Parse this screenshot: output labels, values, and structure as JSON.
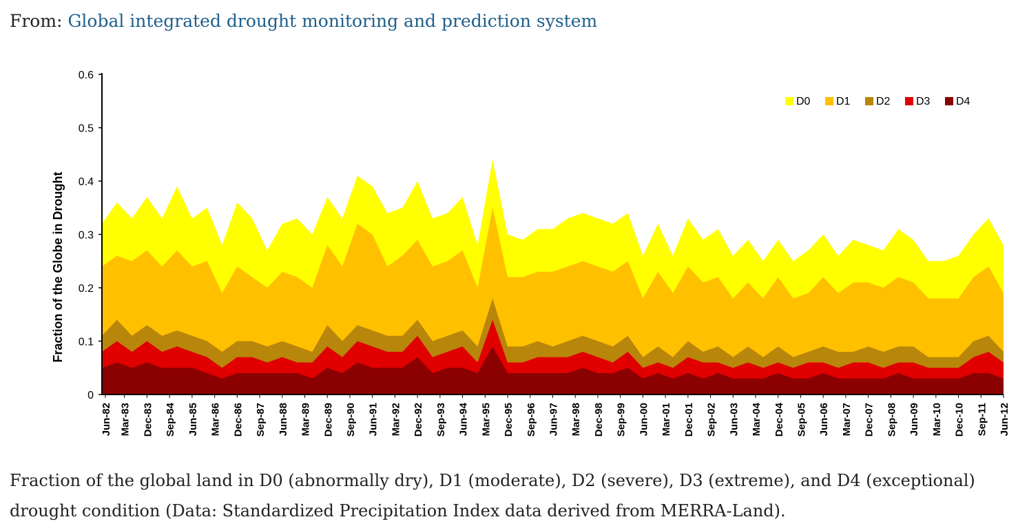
{
  "source": {
    "prefix": "From:",
    "link_text": "Global integrated drought monitoring and prediction system"
  },
  "caption": "Fraction of the global land in D0 (abnormally dry), D1 (moderate), D2 (severe), D3 (extreme), and D4 (exceptional) drought condition (Data: Standardized Precipitation Index data derived from MERRA-Land).",
  "chart_data": {
    "type": "area",
    "stacked": false,
    "title": "",
    "xlabel": "",
    "ylabel": "Fraction of the Globe in Drought",
    "ylim": [
      0,
      0.6
    ],
    "yticks": [
      "0",
      "0.1",
      "0.2",
      "0.3",
      "0.4",
      "0.5",
      "0.6"
    ],
    "xticks": [
      "Jun-82",
      "Mar-83",
      "Dec-83",
      "Sep-84",
      "Jun-85",
      "Mar-86",
      "Dec-86",
      "Sep-87",
      "Jun-88",
      "Mar-89",
      "Dec-89",
      "Sep-90",
      "Jun-91",
      "Mar-92",
      "Dec-92",
      "Sep-93",
      "Jun-94",
      "Mar-95",
      "Dec-95",
      "Sep-96",
      "Jun-97",
      "Mar-98",
      "Dec-98",
      "Sep-99",
      "Jun-00",
      "Mar-01",
      "Dec-01",
      "Sep-02",
      "Jun-03",
      "Mar-04",
      "Dec-04",
      "Sep-05",
      "Jun-06",
      "Mar-07",
      "Dec-07",
      "Sep-08",
      "Jun-09",
      "Mar-10",
      "Dec-10",
      "Sep-11",
      "Jun-12"
    ],
    "grid": false,
    "legend_position": "top-right",
    "series": [
      {
        "name": "D0",
        "color": "#ffff00",
        "values": [
          0.32,
          0.36,
          0.33,
          0.37,
          0.33,
          0.39,
          0.33,
          0.35,
          0.28,
          0.36,
          0.33,
          0.27,
          0.32,
          0.33,
          0.3,
          0.37,
          0.33,
          0.41,
          0.39,
          0.34,
          0.35,
          0.4,
          0.33,
          0.34,
          0.37,
          0.28,
          0.44,
          0.3,
          0.29,
          0.31,
          0.31,
          0.33,
          0.34,
          0.33,
          0.32,
          0.34,
          0.26,
          0.32,
          0.26,
          0.33,
          0.29,
          0.31,
          0.26,
          0.29,
          0.25,
          0.29,
          0.25,
          0.27,
          0.3,
          0.26,
          0.29,
          0.28,
          0.27,
          0.31,
          0.29,
          0.25,
          0.25,
          0.26,
          0.3,
          0.33,
          0.28
        ]
      },
      {
        "name": "D1",
        "color": "#ffc000",
        "values": [
          0.24,
          0.26,
          0.25,
          0.27,
          0.24,
          0.27,
          0.24,
          0.25,
          0.19,
          0.24,
          0.22,
          0.2,
          0.23,
          0.22,
          0.2,
          0.28,
          0.24,
          0.32,
          0.3,
          0.24,
          0.26,
          0.29,
          0.24,
          0.25,
          0.27,
          0.2,
          0.35,
          0.22,
          0.22,
          0.23,
          0.23,
          0.24,
          0.25,
          0.24,
          0.23,
          0.25,
          0.18,
          0.23,
          0.19,
          0.24,
          0.21,
          0.22,
          0.18,
          0.21,
          0.18,
          0.22,
          0.18,
          0.19,
          0.22,
          0.19,
          0.21,
          0.21,
          0.2,
          0.22,
          0.21,
          0.18,
          0.18,
          0.18,
          0.22,
          0.24,
          0.19
        ]
      },
      {
        "name": "D2",
        "color": "#b8860b",
        "values": [
          0.11,
          0.14,
          0.11,
          0.13,
          0.11,
          0.12,
          0.11,
          0.1,
          0.08,
          0.1,
          0.1,
          0.09,
          0.1,
          0.09,
          0.08,
          0.13,
          0.1,
          0.13,
          0.12,
          0.11,
          0.11,
          0.14,
          0.1,
          0.11,
          0.12,
          0.09,
          0.18,
          0.09,
          0.09,
          0.1,
          0.09,
          0.1,
          0.11,
          0.1,
          0.09,
          0.11,
          0.07,
          0.09,
          0.07,
          0.1,
          0.08,
          0.09,
          0.07,
          0.09,
          0.07,
          0.09,
          0.07,
          0.08,
          0.09,
          0.08,
          0.08,
          0.09,
          0.08,
          0.09,
          0.09,
          0.07,
          0.07,
          0.07,
          0.1,
          0.11,
          0.08
        ]
      },
      {
        "name": "D3",
        "color": "#e00000",
        "values": [
          0.08,
          0.1,
          0.08,
          0.1,
          0.08,
          0.09,
          0.08,
          0.07,
          0.05,
          0.07,
          0.07,
          0.06,
          0.07,
          0.06,
          0.06,
          0.09,
          0.07,
          0.1,
          0.09,
          0.08,
          0.08,
          0.11,
          0.07,
          0.08,
          0.09,
          0.06,
          0.14,
          0.06,
          0.06,
          0.07,
          0.07,
          0.07,
          0.08,
          0.07,
          0.06,
          0.08,
          0.05,
          0.06,
          0.05,
          0.07,
          0.06,
          0.06,
          0.05,
          0.06,
          0.05,
          0.06,
          0.05,
          0.06,
          0.06,
          0.05,
          0.06,
          0.06,
          0.05,
          0.06,
          0.06,
          0.05,
          0.05,
          0.05,
          0.07,
          0.08,
          0.06
        ]
      },
      {
        "name": "D4",
        "color": "#8b0000",
        "values": [
          0.05,
          0.06,
          0.05,
          0.06,
          0.05,
          0.05,
          0.05,
          0.04,
          0.03,
          0.04,
          0.04,
          0.04,
          0.04,
          0.04,
          0.03,
          0.05,
          0.04,
          0.06,
          0.05,
          0.05,
          0.05,
          0.07,
          0.04,
          0.05,
          0.05,
          0.04,
          0.09,
          0.04,
          0.04,
          0.04,
          0.04,
          0.04,
          0.05,
          0.04,
          0.04,
          0.05,
          0.03,
          0.04,
          0.03,
          0.04,
          0.03,
          0.04,
          0.03,
          0.03,
          0.03,
          0.04,
          0.03,
          0.03,
          0.04,
          0.03,
          0.03,
          0.03,
          0.03,
          0.04,
          0.03,
          0.03,
          0.03,
          0.03,
          0.04,
          0.04,
          0.03
        ]
      }
    ]
  }
}
